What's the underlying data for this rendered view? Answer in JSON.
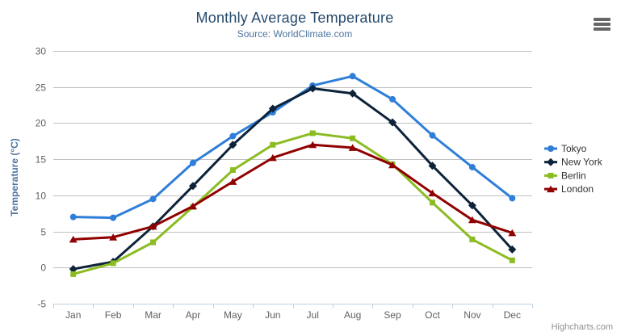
{
  "credits": {
    "label": "Highcharts.com"
  },
  "toolbar": {
    "menu_icon": "hamburger-icon"
  },
  "chart_data": {
    "type": "line",
    "title": "Monthly Average Temperature",
    "subtitle": "Source: WorldClimate.com",
    "categories": [
      "Jan",
      "Feb",
      "Mar",
      "Apr",
      "May",
      "Jun",
      "Jul",
      "Aug",
      "Sep",
      "Oct",
      "Nov",
      "Dec"
    ],
    "xlabel": "",
    "ylabel": "Temperature (°C)",
    "ylim": [
      -5,
      30
    ],
    "ytick_step": 5,
    "grid": true,
    "legend_position": "right",
    "colors": {
      "gridline": "#C0C0C0",
      "axis_line": "#C0D0E0",
      "tick_label": "#606060",
      "legend_text": "#333333",
      "title": "#274b6d",
      "subtitle": "#4d759e",
      "axis_title": "#4d759e"
    },
    "series": [
      {
        "name": "Tokyo",
        "color": "#2f7ed8",
        "marker": "circle",
        "values": [
          7.0,
          6.9,
          9.5,
          14.5,
          18.2,
          21.5,
          25.2,
          26.5,
          23.3,
          18.3,
          13.9,
          9.6
        ]
      },
      {
        "name": "New York",
        "color": "#0d233a",
        "marker": "diamond",
        "values": [
          -0.2,
          0.8,
          5.7,
          11.3,
          17.0,
          22.0,
          24.8,
          24.1,
          20.1,
          14.1,
          8.6,
          2.5
        ]
      },
      {
        "name": "Berlin",
        "color": "#8bbc21",
        "marker": "square",
        "values": [
          -0.9,
          0.6,
          3.5,
          8.4,
          13.5,
          17.0,
          18.6,
          17.9,
          14.3,
          9.0,
          3.9,
          1.0
        ]
      },
      {
        "name": "London",
        "color": "#910000",
        "marker": "triangle",
        "values": [
          3.9,
          4.2,
          5.7,
          8.5,
          11.9,
          15.2,
          17.0,
          16.6,
          14.2,
          10.3,
          6.6,
          4.8
        ]
      }
    ]
  }
}
